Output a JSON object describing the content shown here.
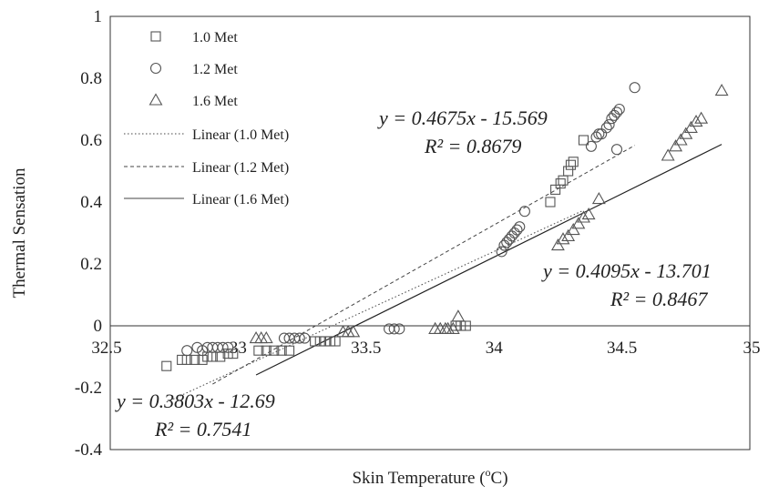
{
  "chart_data": {
    "type": "scatter",
    "xlabel": "Skin Temperature (",
    "xlabel_sup": "o",
    "xlabel_tail": "C)",
    "ylabel": "Thermal Sensation",
    "xlim": [
      32.5,
      35
    ],
    "ylim": [
      -0.4,
      1
    ],
    "xticks": [
      32.5,
      33,
      33.5,
      34,
      34.5,
      35
    ],
    "xtick_labels": [
      "32.5",
      "33",
      "33.5",
      "34",
      "34.5",
      "35"
    ],
    "yticks": [
      -0.4,
      -0.2,
      0,
      0.2,
      0.4,
      0.6,
      0.8,
      1
    ],
    "ytick_labels": [
      "-0.4",
      "-0.2",
      "0",
      "0.2",
      "0.4",
      "0.6",
      "0.8",
      "1"
    ],
    "grid": false,
    "legend_position": "top-left",
    "series": [
      {
        "name": "1.0 Met",
        "marker": "square",
        "points": [
          [
            32.72,
            -0.13
          ],
          [
            32.78,
            -0.11
          ],
          [
            32.8,
            -0.11
          ],
          [
            32.83,
            -0.11
          ],
          [
            32.86,
            -0.11
          ],
          [
            32.88,
            -0.1
          ],
          [
            32.9,
            -0.1
          ],
          [
            32.93,
            -0.1
          ],
          [
            32.96,
            -0.09
          ],
          [
            32.98,
            -0.09
          ],
          [
            33.08,
            -0.08
          ],
          [
            33.11,
            -0.08
          ],
          [
            33.14,
            -0.08
          ],
          [
            33.17,
            -0.08
          ],
          [
            33.2,
            -0.08
          ],
          [
            33.3,
            -0.05
          ],
          [
            33.32,
            -0.05
          ],
          [
            33.34,
            -0.05
          ],
          [
            33.36,
            -0.05
          ],
          [
            33.38,
            -0.05
          ],
          [
            33.85,
            0.0
          ],
          [
            33.87,
            0.0
          ],
          [
            33.89,
            0.0
          ],
          [
            34.22,
            0.4
          ],
          [
            34.24,
            0.44
          ],
          [
            34.26,
            0.46
          ],
          [
            34.27,
            0.47
          ],
          [
            34.29,
            0.5
          ],
          [
            34.3,
            0.52
          ],
          [
            34.31,
            0.53
          ],
          [
            34.35,
            0.6
          ]
        ],
        "trendline": {
          "label": "Linear (1.0 Met)",
          "style": "dotted",
          "x": [
            32.72,
            34.35
          ],
          "equation": "y = 0.3803x - 12.69",
          "r2": "R² = 0.7541"
        }
      },
      {
        "name": "1.2 Met",
        "marker": "circle",
        "points": [
          [
            32.8,
            -0.08
          ],
          [
            32.84,
            -0.07
          ],
          [
            32.86,
            -0.08
          ],
          [
            32.88,
            -0.07
          ],
          [
            32.9,
            -0.07
          ],
          [
            32.92,
            -0.07
          ],
          [
            32.94,
            -0.07
          ],
          [
            32.96,
            -0.07
          ],
          [
            33.18,
            -0.04
          ],
          [
            33.2,
            -0.04
          ],
          [
            33.22,
            -0.04
          ],
          [
            33.24,
            -0.04
          ],
          [
            33.26,
            -0.04
          ],
          [
            33.59,
            -0.01
          ],
          [
            33.61,
            -0.01
          ],
          [
            33.63,
            -0.01
          ],
          [
            34.03,
            0.24
          ],
          [
            34.04,
            0.26
          ],
          [
            34.05,
            0.27
          ],
          [
            34.06,
            0.28
          ],
          [
            34.07,
            0.29
          ],
          [
            34.08,
            0.3
          ],
          [
            34.09,
            0.31
          ],
          [
            34.1,
            0.32
          ],
          [
            34.12,
            0.37
          ],
          [
            34.38,
            0.58
          ],
          [
            34.4,
            0.61
          ],
          [
            34.41,
            0.62
          ],
          [
            34.42,
            0.62
          ],
          [
            34.44,
            0.64
          ],
          [
            34.45,
            0.65
          ],
          [
            34.46,
            0.67
          ],
          [
            34.47,
            0.68
          ],
          [
            34.48,
            0.69
          ],
          [
            34.49,
            0.7
          ],
          [
            34.48,
            0.57
          ],
          [
            34.55,
            0.77
          ]
        ],
        "trendline": {
          "label": "Linear (1.2 Met)",
          "style": "dashed",
          "x": [
            32.9,
            34.55
          ],
          "equation": "y = 0.4675x - 15.569",
          "r2": "R² = 0.8679"
        }
      },
      {
        "name": "1.6 Met",
        "marker": "triangle",
        "points": [
          [
            33.07,
            -0.04
          ],
          [
            33.09,
            -0.04
          ],
          [
            33.11,
            -0.04
          ],
          [
            33.41,
            -0.02
          ],
          [
            33.43,
            -0.02
          ],
          [
            33.45,
            -0.02
          ],
          [
            33.77,
            -0.01
          ],
          [
            33.79,
            -0.01
          ],
          [
            33.81,
            -0.01
          ],
          [
            33.82,
            -0.01
          ],
          [
            33.84,
            -0.01
          ],
          [
            33.86,
            0.03
          ],
          [
            34.25,
            0.26
          ],
          [
            34.27,
            0.28
          ],
          [
            34.29,
            0.29
          ],
          [
            34.31,
            0.31
          ],
          [
            34.33,
            0.33
          ],
          [
            34.35,
            0.35
          ],
          [
            34.37,
            0.36
          ],
          [
            34.41,
            0.41
          ],
          [
            34.68,
            0.55
          ],
          [
            34.71,
            0.58
          ],
          [
            34.73,
            0.6
          ],
          [
            34.75,
            0.62
          ],
          [
            34.77,
            0.64
          ],
          [
            34.79,
            0.66
          ],
          [
            34.81,
            0.67
          ],
          [
            34.89,
            0.76
          ]
        ],
        "trendline": {
          "label": "Linear (1.6 Met)",
          "style": "solid",
          "x": [
            33.07,
            34.89
          ],
          "equation": "y = 0.4095x - 13.701",
          "r2": "R² = 0.8467"
        }
      }
    ]
  }
}
